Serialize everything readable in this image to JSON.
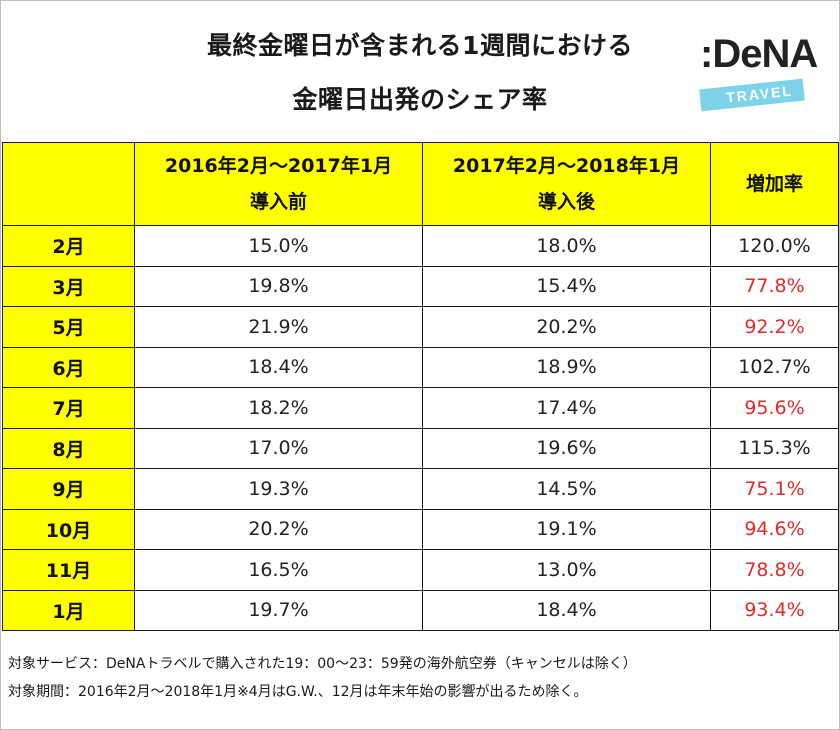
{
  "title": {
    "line1": "最終金曜日が含まれる1週間における",
    "line2": "金曜日出発のシェア率"
  },
  "logo": {
    "main": ":DeNA",
    "sub": "TRAVEL",
    "band_color": "#7fd3e8"
  },
  "table": {
    "headers": {
      "before_period": "2016年2月～2017年1月",
      "before_label": "導入前",
      "after_period": "2017年2月～2018年1月",
      "after_label": "導入後",
      "rate": "増加率"
    },
    "rows": [
      {
        "month": "2月",
        "before": "15.0%",
        "after": "18.0%",
        "rate": "120.0%",
        "decrease": false
      },
      {
        "month": "3月",
        "before": "19.8%",
        "after": "15.4%",
        "rate": "77.8%",
        "decrease": true
      },
      {
        "month": "5月",
        "before": "21.9%",
        "after": "20.2%",
        "rate": "92.2%",
        "decrease": true
      },
      {
        "month": "6月",
        "before": "18.4%",
        "after": "18.9%",
        "rate": "102.7%",
        "decrease": false
      },
      {
        "month": "7月",
        "before": "18.2%",
        "after": "17.4%",
        "rate": "95.6%",
        "decrease": true
      },
      {
        "month": "8月",
        "before": "17.0%",
        "after": "19.6%",
        "rate": "115.3%",
        "decrease": false
      },
      {
        "month": "9月",
        "before": "19.3%",
        "after": "14.5%",
        "rate": "75.1%",
        "decrease": true
      },
      {
        "month": "10月",
        "before": "20.2%",
        "after": "19.1%",
        "rate": "94.6%",
        "decrease": true
      },
      {
        "month": "11月",
        "before": "16.5%",
        "after": "13.0%",
        "rate": "78.8%",
        "decrease": true
      },
      {
        "month": "1月",
        "before": "19.7%",
        "after": "18.4%",
        "rate": "93.4%",
        "decrease": true
      }
    ],
    "colors": {
      "header_bg": "#ffff00",
      "decrease_text": "#e62828"
    }
  },
  "notes": {
    "service": "対象サービス：DeNAトラベルで購入された19：00～23：59発の海外航空券（キャンセルは除く）",
    "period": "対象期間：2016年2月～2018年1月※4月はG.W.、12月は年末年始の影響が出るため除く。"
  }
}
